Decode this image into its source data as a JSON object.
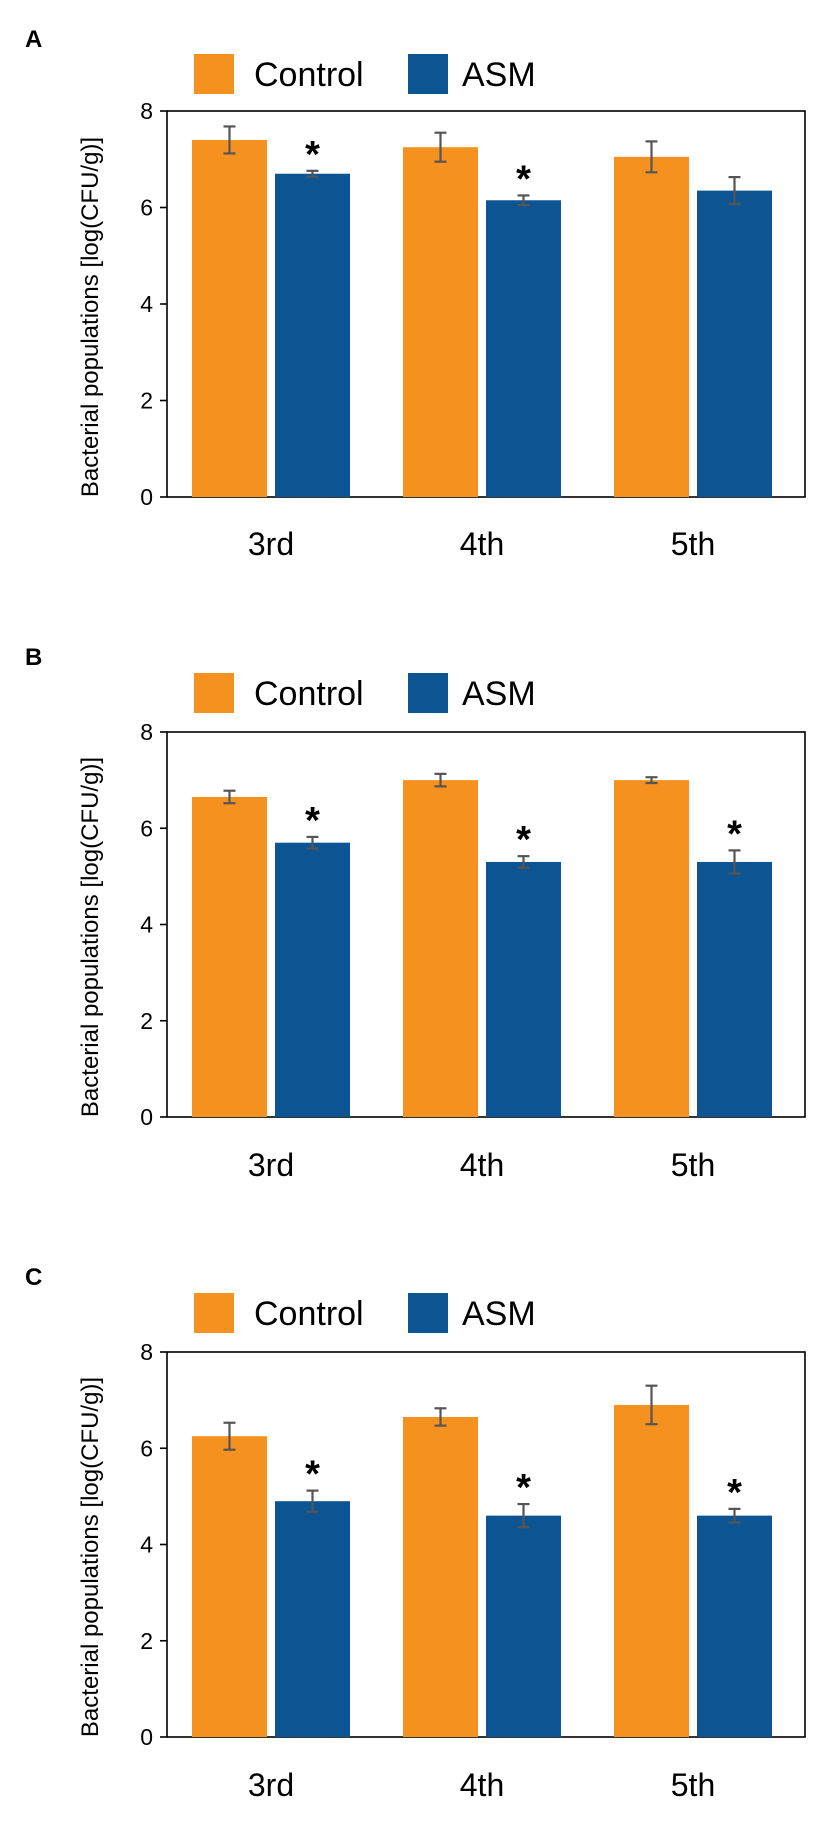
{
  "colors": {
    "control": "#f5911e",
    "asm": "#0d5592",
    "error": "#555555",
    "axis": "#000000"
  },
  "chart_data": [
    {
      "type": "bar",
      "panel": "A",
      "categories": [
        "3rd",
        "4th",
        "5th"
      ],
      "ylabel": "Bacterial populations [log(CFU/g)]",
      "xlabel": "",
      "ylim": [
        0,
        8
      ],
      "yticks": [
        "0",
        "2",
        "4",
        "6",
        "8"
      ],
      "legend": "top",
      "series": [
        {
          "name": "Control",
          "values": [
            7.4,
            7.25,
            7.05
          ],
          "errors": [
            0.28,
            0.3,
            0.32
          ],
          "significant": [
            false,
            false,
            false
          ]
        },
        {
          "name": "ASM",
          "values": [
            6.7,
            6.15,
            6.35
          ],
          "errors": [
            0.06,
            0.1,
            0.28
          ],
          "significant": [
            true,
            true,
            false
          ]
        }
      ]
    },
    {
      "type": "bar",
      "panel": "B",
      "categories": [
        "3rd",
        "4th",
        "5th"
      ],
      "ylabel": "Bacterial populations [log(CFU/g)]",
      "xlabel": "",
      "ylim": [
        0,
        8
      ],
      "yticks": [
        "0",
        "2",
        "4",
        "6",
        "8"
      ],
      "legend": "top",
      "series": [
        {
          "name": "Control",
          "values": [
            6.65,
            7.0,
            7.0
          ],
          "errors": [
            0.13,
            0.13,
            0.06
          ],
          "significant": [
            false,
            false,
            false
          ]
        },
        {
          "name": "ASM",
          "values": [
            5.7,
            5.3,
            5.3
          ],
          "errors": [
            0.12,
            0.12,
            0.24
          ],
          "significant": [
            true,
            true,
            true
          ]
        }
      ]
    },
    {
      "type": "bar",
      "panel": "C",
      "categories": [
        "3rd",
        "4th",
        "5th"
      ],
      "ylabel": "Bacterial populations [log(CFU/g)]",
      "xlabel": "",
      "ylim": [
        0,
        8
      ],
      "yticks": [
        "0",
        "2",
        "4",
        "6",
        "8"
      ],
      "legend": "top",
      "series": [
        {
          "name": "Control",
          "values": [
            6.25,
            6.65,
            6.9
          ],
          "errors": [
            0.28,
            0.18,
            0.4
          ],
          "significant": [
            false,
            false,
            false
          ]
        },
        {
          "name": "ASM",
          "values": [
            4.9,
            4.6,
            4.6
          ],
          "errors": [
            0.22,
            0.24,
            0.14
          ],
          "significant": [
            true,
            true,
            true
          ]
        }
      ]
    }
  ]
}
